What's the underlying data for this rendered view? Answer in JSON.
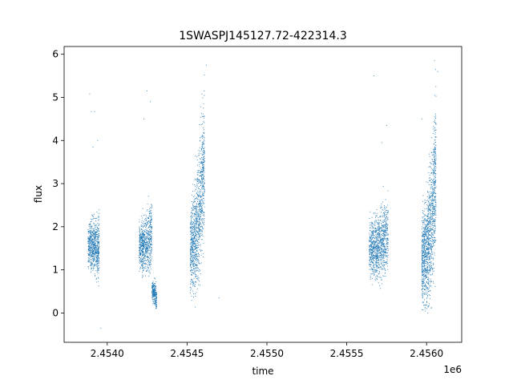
{
  "chart_data": {
    "type": "scatter",
    "title": "1SWASPJ145127.72-422314.3",
    "xlabel": "time",
    "ylabel": "flux",
    "x_offset_label": "1e6",
    "xlim": [
      2.45373,
      2.45622
    ],
    "ylim": [
      -0.68,
      6.18
    ],
    "x_ticks": [
      2.454,
      2.4545,
      2.455,
      2.4555,
      2.456
    ],
    "x_tick_labels": [
      "2.4540",
      "2.4545",
      "2.4550",
      "2.4555",
      "2.4560"
    ],
    "y_ticks": [
      0,
      1,
      2,
      3,
      4,
      5,
      6
    ],
    "y_tick_labels": [
      "0",
      "1",
      "2",
      "3",
      "4",
      "5",
      "6"
    ],
    "grid": false,
    "legend": "none",
    "marker_color": "#1f77b4",
    "series": [
      {
        "segments": [
          {
            "x_start": 2.45388,
            "x_end": 2.45395,
            "y_low": 0.15,
            "y_high": 2.7,
            "y_center": 1.55,
            "count": 700,
            "trend": 0.0,
            "outliers": [
              [
                2.45389,
                5.08
              ],
              [
                2.4539,
                4.67
              ],
              [
                2.45392,
                4.67
              ],
              [
                2.45394,
                4.0
              ],
              [
                2.45396,
                -0.35
              ],
              [
                2.45391,
                3.85
              ]
            ]
          },
          {
            "x_start": 2.4542,
            "x_end": 2.45428,
            "y_low": 0.1,
            "y_high": 2.9,
            "y_center": 1.55,
            "count": 700,
            "trend": 0.3,
            "outliers": [
              [
                2.45425,
                5.15
              ],
              [
                2.45427,
                4.9
              ],
              [
                2.45423,
                4.5
              ]
            ]
          },
          {
            "x_start": 2.45428,
            "x_end": 2.45431,
            "y_low": 0.0,
            "y_high": 1.1,
            "y_center": 0.5,
            "count": 250,
            "trend": -0.2,
            "outliers": []
          },
          {
            "x_start": 2.45452,
            "x_end": 2.45461,
            "y_low": 0.0,
            "y_high": 5.8,
            "y_center": 1.5,
            "count": 1100,
            "trend": 2.2,
            "outliers": [
              [
                2.4547,
                0.35
              ],
              [
                2.45462,
                5.75
              ]
            ]
          },
          {
            "x_start": 2.45564,
            "x_end": 2.45576,
            "y_low": 0.0,
            "y_high": 3.2,
            "y_center": 1.5,
            "count": 1000,
            "trend": 0.3,
            "outliers": [
              [
                2.45567,
                5.5
              ],
              [
                2.45575,
                4.35
              ],
              [
                2.45572,
                3.95
              ]
            ]
          },
          {
            "x_start": 2.45597,
            "x_end": 2.45606,
            "y_low": 0.0,
            "y_high": 5.9,
            "y_center": 1.2,
            "count": 1300,
            "trend": 2.2,
            "outliers": [
              [
                2.45597,
                4.5
              ],
              [
                2.45605,
                5.85
              ],
              [
                2.45607,
                5.6
              ]
            ]
          }
        ]
      }
    ]
  }
}
